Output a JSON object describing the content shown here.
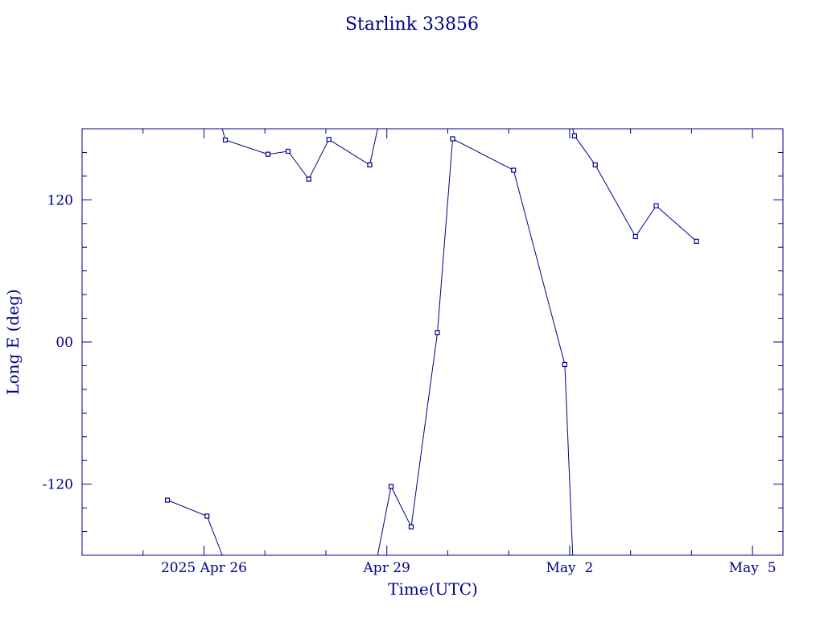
{
  "chart_data": {
    "type": "line",
    "title": "Starlink 33856",
    "xlabel": "Time(UTC)",
    "ylabel": "Long E (deg)",
    "x_tick_labels": [
      "2025 Apr 26",
      "Apr 29",
      "May  2",
      "May  5"
    ],
    "x_ticks_days": [
      26,
      29,
      32,
      35
    ],
    "y_tick_labels": [
      "-120",
      "00",
      "120"
    ],
    "y_ticks": [
      -120,
      0,
      120
    ],
    "xlim": [
      24,
      35.5
    ],
    "ylim": [
      -180,
      180
    ],
    "grid": false,
    "color": "#00008b",
    "segments": [
      {
        "points": [
          [
            25.4,
            -133.5
          ],
          [
            26.05,
            -147
          ],
          [
            26.3,
            -180
          ]
        ]
      },
      {
        "points": [
          [
            26.3,
            180
          ],
          [
            26.35,
            170.5
          ],
          [
            27.05,
            158.5
          ],
          [
            27.38,
            161
          ],
          [
            27.72,
            137.5
          ],
          [
            28.05,
            171
          ],
          [
            28.72,
            149.5
          ],
          [
            28.85,
            180
          ]
        ]
      },
      {
        "points": [
          [
            28.85,
            -180
          ],
          [
            29.07,
            -122
          ],
          [
            29.4,
            -156
          ],
          [
            29.83,
            8
          ],
          [
            30.08,
            171.5
          ],
          [
            31.08,
            145
          ],
          [
            31.92,
            -19
          ],
          [
            32.05,
            -180
          ]
        ]
      },
      {
        "points": [
          [
            32.05,
            180
          ],
          [
            32.08,
            174
          ],
          [
            32.42,
            149.5
          ],
          [
            33.08,
            89
          ],
          [
            33.42,
            115
          ],
          [
            34.08,
            85
          ]
        ]
      }
    ]
  }
}
